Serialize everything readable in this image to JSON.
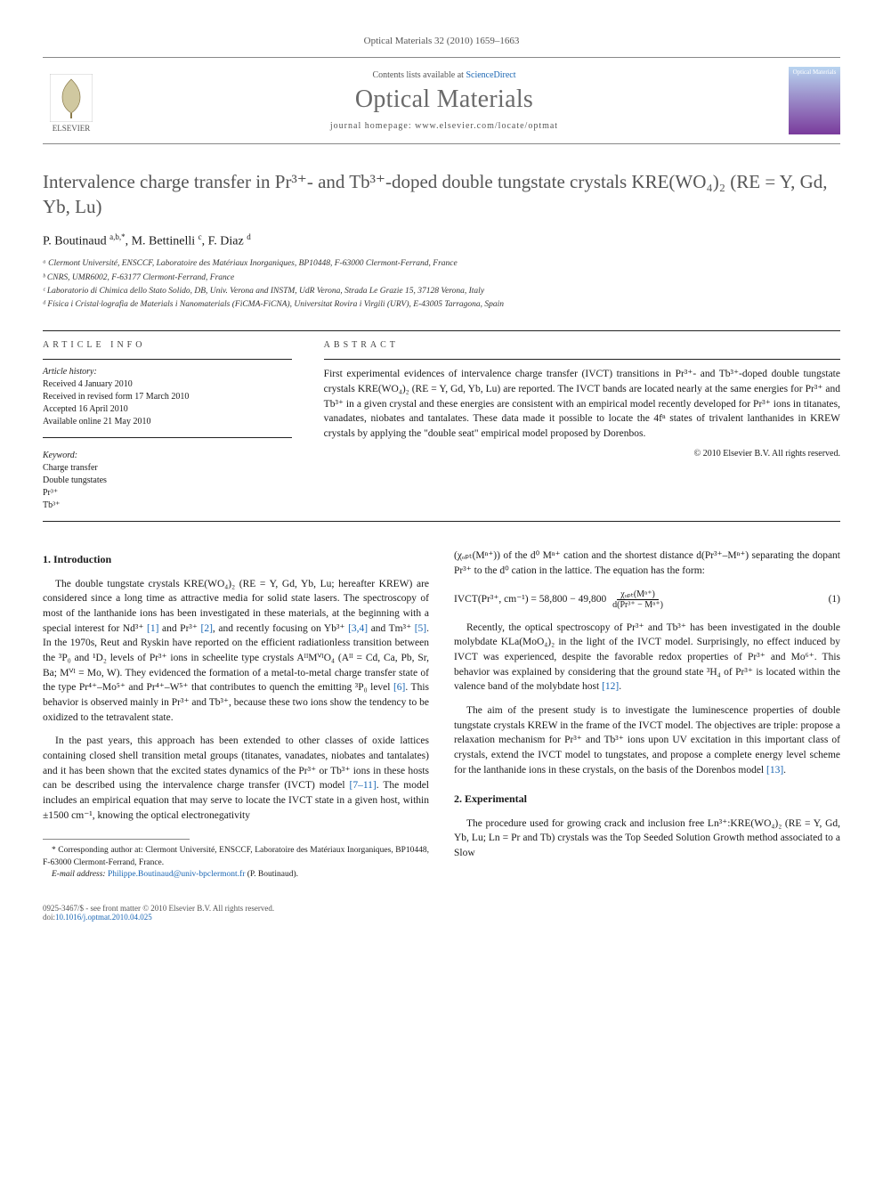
{
  "journal_ref": "Optical Materials 32 (2010) 1659–1663",
  "header": {
    "elsevier_label": "ELSEVIER",
    "contents_prefix": "Contents lists available at ",
    "contents_link": "ScienceDirect",
    "journal_name": "Optical Materials",
    "homepage_prefix": "journal homepage: ",
    "homepage_url": "www.elsevier.com/locate/optmat",
    "cover_label": "Optical Materials"
  },
  "title": "Intervalence charge transfer in Pr³⁺- and Tb³⁺-doped double tungstate crystals KRE(WO₄)₂ (RE = Y, Gd, Yb, Lu)",
  "authors_html": "P. Boutinaud <sup>a,b,*</sup>, M. Bettinelli <sup>c</sup>, F. Diaz <sup>d</sup>",
  "affiliations": [
    "ᵃ Clermont Université, ENSCCF, Laboratoire des Matériaux Inorganiques, BP10448, F-63000 Clermont-Ferrand, France",
    "ᵇ CNRS, UMR6002, F-63177 Clermont-Ferrand, France",
    "ᶜ Laboratorio di Chimica dello Stato Solido, DB, Univ. Verona and INSTM, UdR Verona, Strada Le Grazie 15, 37128 Verona, Italy",
    "ᵈ Física i Cristal·lografia de Materials i Nanomaterials (FiCMA-FiCNA), Universitat Rovira i Virgili (URV), E-43005 Tarragona, Spain"
  ],
  "article_info": {
    "label": "ARTICLE INFO",
    "history_label": "Article history:",
    "history": [
      "Received 4 January 2010",
      "Received in revised form 17 March 2010",
      "Accepted 16 April 2010",
      "Available online 21 May 2010"
    ],
    "keywords_label": "Keyword:",
    "keywords": [
      "Charge transfer",
      "Double tungstates",
      "Pr³⁺",
      "Tb³⁺"
    ]
  },
  "abstract": {
    "label": "ABSTRACT",
    "text": "First experimental evidences of intervalence charge transfer (IVCT) transitions in Pr³⁺- and Tb³⁺-doped double tungstate crystals KRE(WO₄)₂ (RE = Y, Gd, Yb, Lu) are reported. The IVCT bands are located nearly at the same energies for Pr³⁺ and Tb³⁺ in a given crystal and these energies are consistent with an empirical model recently developed for Pr³⁺ ions in titanates, vanadates, niobates and tantalates. These data made it possible to locate the 4fⁿ states of trivalent lanthanides in KREW crystals by applying the \"double seat\" empirical model proposed by Dorenbos.",
    "copyright": "© 2010 Elsevier B.V. All rights reserved."
  },
  "sections": {
    "intro_heading": "1. Introduction",
    "intro_p1_pre": "The double tungstate crystals KRE(WO₄)₂ (RE = Y, Gd, Yb, Lu; hereafter KREW) are considered since a long time as attractive media for solid state lasers. The spectroscopy of most of the lanthanide ions has been investigated in these materials, at the beginning with a special interest for Nd³⁺ ",
    "intro_p1_post": ". In the 1970s, Reut and Ryskin have reported on the efficient radiationless transition between the ³P₀ and ¹D₂ levels of Pr³⁺ ions in scheelite type crystals AᴵᴵMⱽᴵO₄ (Aᴵᴵ = Cd, Ca, Pb, Sr, Ba; Mⱽᴵ = Mo, W). They evidenced the formation of a metal-to-metal charge transfer state of the type Pr⁴⁺–Mo⁵⁺ and Pr⁴⁺–W⁵⁺ that contributes to quench the emitting ³P₀ level ",
    "intro_p1_tail": ". This behavior is observed mainly in Pr³⁺ and Tb³⁺, because these two ions show the tendency to be oxidized to the tetravalent state.",
    "intro_p2_pre": "In the past years, this approach has been extended to other classes of oxide lattices containing closed shell transition metal groups (titanates, vanadates, niobates and tantalates) and it has been shown that the excited states dynamics of the Pr³⁺ or Tb³⁺ ions in these hosts can be described using the intervalence charge transfer (IVCT) model ",
    "intro_p2_post": ". The model includes an empirical equation that may serve to locate the IVCT state in a given host, within ±1500 cm⁻¹, knowing the optical electronegativity",
    "col2_p1": "(χₒₚₜ(Mⁿ⁺)) of the d⁰ Mⁿ⁺ cation and the shortest distance d(Pr³⁺–Mⁿ⁺) separating the dopant Pr³⁺ to the d⁰ cation in the lattice. The equation has the form:",
    "equation": {
      "lhs": "IVCT(Pr³⁺, cm⁻¹) = 58,800 − 49,800",
      "num": "χₒₚₜ(Mⁿ⁺)",
      "den": "d(Pr³⁺ − Mⁿ⁺)",
      "label": "(1)"
    },
    "col2_p2_pre": "Recently, the optical spectroscopy of Pr³⁺ and Tb³⁺ has been investigated in the double molybdate KLa(MoO₄)₂ in the light of the IVCT model. Surprisingly, no effect induced by IVCT was experienced, despite the favorable redox properties of Pr³⁺ and Mo⁶⁺. This behavior was explained by considering that the ground state ³H₄ of Pr³⁺ is located within the valence band of the molybdate host ",
    "col2_p3_pre": "The aim of the present study is to investigate the luminescence properties of double tungstate crystals KREW in the frame of the IVCT model. The objectives are triple: propose a relaxation mechanism for Pr³⁺ and Tb³⁺ ions upon UV excitation in this important class of crystals, extend the IVCT model to tungstates, and propose a complete energy level scheme for the lanthanide ions in these crystals, on the basis of the Dorenbos model ",
    "exp_heading": "2. Experimental",
    "exp_p1": "The procedure used for growing crack and inclusion free Ln³⁺:KRE(WO₄)₂ (RE = Y, Gd, Yb, Lu; Ln = Pr and Tb) crystals was the Top Seeded Solution Growth method associated to a Slow"
  },
  "refs": {
    "r1": "[1]",
    "r2": "[2]",
    "r34": "[3,4]",
    "r5": "[5]",
    "r6": "[6]",
    "r711": "[7–11]",
    "r12": "[12]",
    "r13": "[13]"
  },
  "link_words": {
    "and_pr": " and Pr³⁺ ",
    "recent_focus": ", and recently focusing on Yb³⁺ ",
    "and_tm": " and Tm³⁺ "
  },
  "footnotes": {
    "corr": "* Corresponding author at: Clermont Université, ENSCCF, Laboratoire des Matériaux Inorganiques, BP10448, F-63000 Clermont-Ferrand, France.",
    "email_label": "E-mail address: ",
    "email": "Philippe.Boutinaud@univ-bpclermont.fr",
    "email_suffix": " (P. Boutinaud)."
  },
  "bottom": {
    "left_line1": "0925-3467/$ - see front matter © 2010 Elsevier B.V. All rights reserved.",
    "left_line2_prefix": "doi:",
    "doi": "10.1016/j.optmat.2010.04.025"
  },
  "colors": {
    "link": "#1a66b3",
    "title_gray": "#555555",
    "journal_gray": "#6a6a6a",
    "rule": "#888888",
    "text": "#1a1a1a"
  },
  "typography": {
    "body_fontsize_pt": 9,
    "title_fontsize_pt": 16,
    "journal_fontsize_pt": 21,
    "font_family": "Georgia / Times-like serif"
  }
}
